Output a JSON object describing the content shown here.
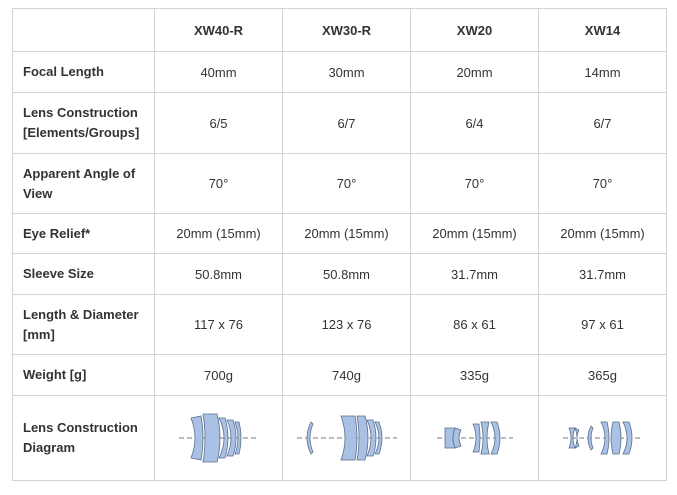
{
  "table": {
    "columns": [
      "",
      "XW40-R",
      "XW30-R",
      "XW20",
      "XW14"
    ],
    "rows": [
      {
        "label": "Focal Length",
        "values": [
          "40mm",
          "30mm",
          "20mm",
          "14mm"
        ]
      },
      {
        "label": "Lens Construction [Elements/Groups]",
        "values": [
          "6/5",
          "6/7",
          "6/4",
          "6/7"
        ]
      },
      {
        "label": "Apparent Angle of View",
        "values": [
          "70°",
          "70°",
          "70°",
          "70°"
        ]
      },
      {
        "label": "Eye Relief*",
        "values": [
          "20mm (15mm)",
          "20mm (15mm)",
          "20mm (15mm)",
          "20mm (15mm)"
        ]
      },
      {
        "label": "Sleeve Size",
        "values": [
          "50.8mm",
          "50.8mm",
          "31.7mm",
          "31.7mm"
        ]
      },
      {
        "label": "Length & Diameter [mm]",
        "values": [
          "117 x 76",
          "123 x 76",
          "86 x 61",
          "97 x 61"
        ]
      },
      {
        "label": "Weight [g]",
        "values": [
          "700g",
          "740g",
          "335g",
          "365g"
        ]
      },
      {
        "label": "Lens Construction Diagram",
        "values": []
      }
    ]
  },
  "colors": {
    "border": "#d3d3d3",
    "text": "#333333",
    "lens_fill": "#a9c1e4",
    "lens_stroke": "#5a6f8c"
  },
  "diagram_icons": [
    "xw40r-lens-diagram",
    "xw30r-lens-diagram",
    "xw20-lens-diagram",
    "xw14-lens-diagram"
  ]
}
